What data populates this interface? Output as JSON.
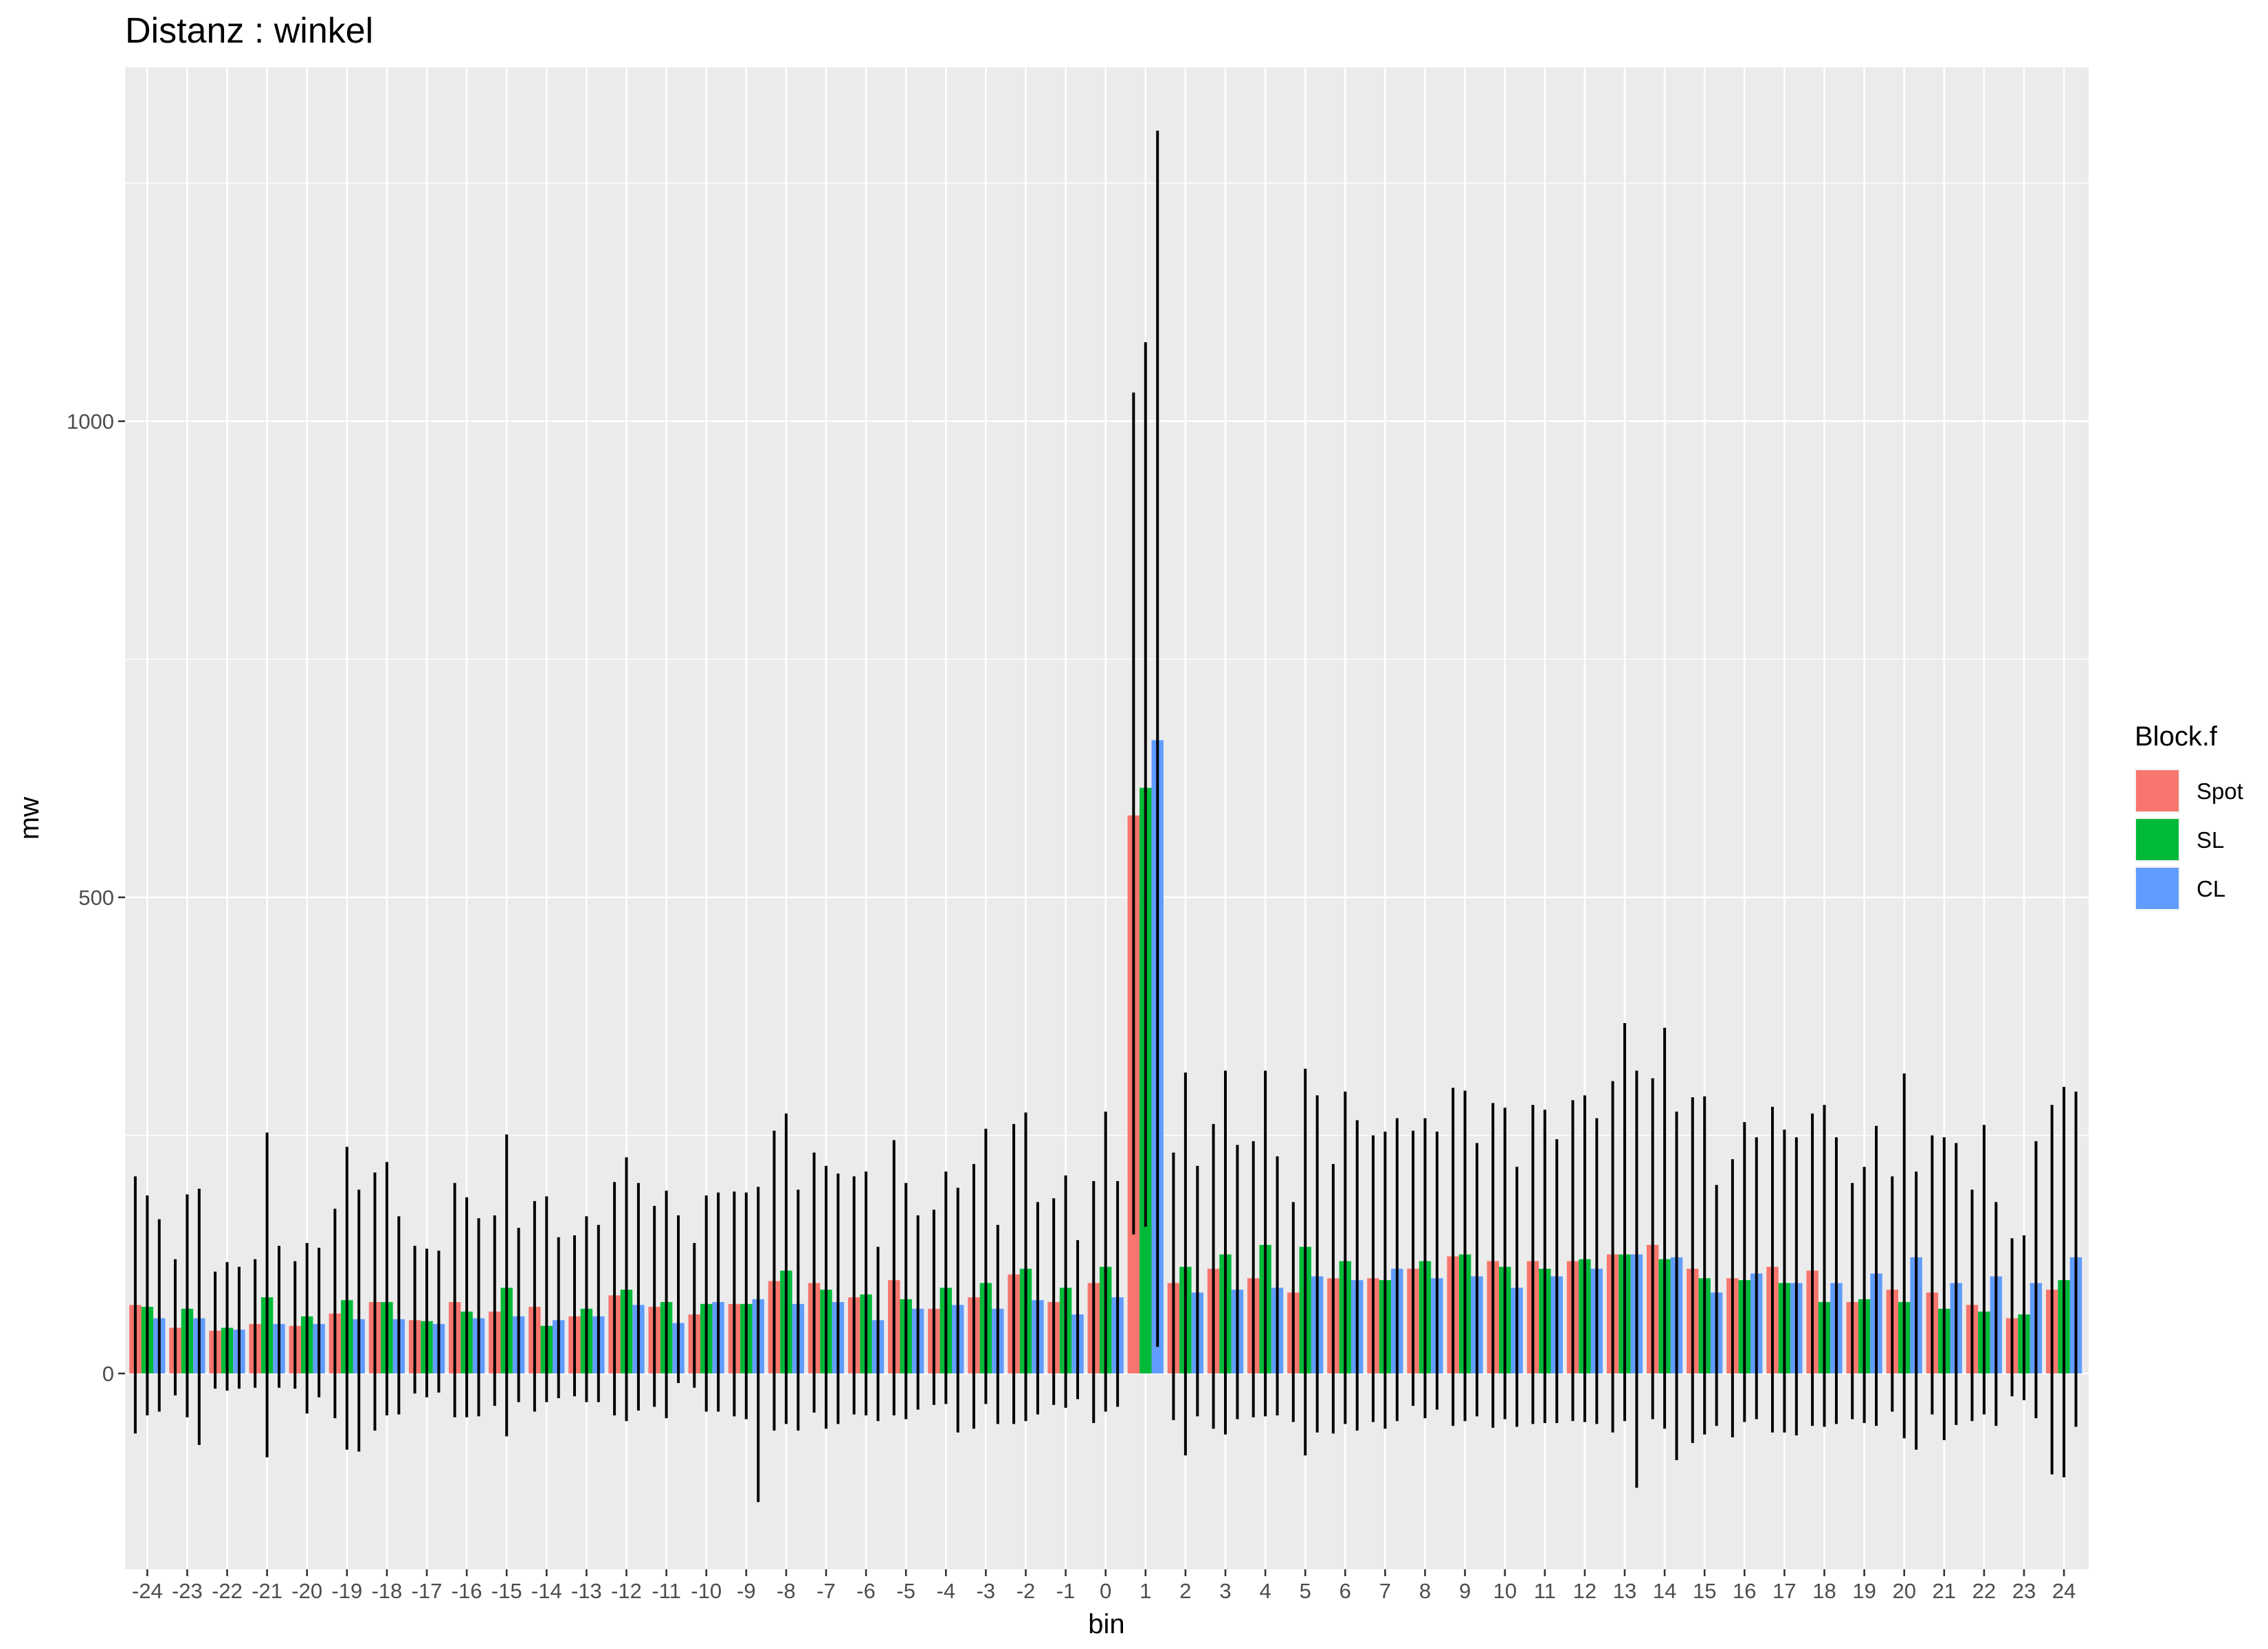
{
  "chart_data": {
    "type": "bar",
    "title": "Distanz : winkel",
    "xlabel": "bin",
    "ylabel": "mw",
    "ylim": [
      -200,
      1380
    ],
    "yticks": [
      0,
      500,
      1000
    ],
    "ytick_labels": [
      "0",
      "500",
      "1000"
    ],
    "grid": true,
    "legend_title": "Block.f",
    "legend_position": "right",
    "categories": [
      "-24",
      "-23",
      "-22",
      "-21",
      "-20",
      "-19",
      "-18",
      "-17",
      "-16",
      "-15",
      "-14",
      "-13",
      "-12",
      "-11",
      "-10",
      "-9",
      "-8",
      "-7",
      "-6",
      "-5",
      "-4",
      "-3",
      "-2",
      "-1",
      "0",
      "1",
      "2",
      "3",
      "4",
      "5",
      "6",
      "7",
      "8",
      "9",
      "10",
      "11",
      "12",
      "13",
      "14",
      "15",
      "16",
      "17",
      "18",
      "19",
      "20",
      "21",
      "22",
      "23",
      "24"
    ],
    "series": [
      {
        "name": "Spot",
        "color": "#F8766D",
        "values": [
          72,
          48,
          45,
          52,
          50,
          63,
          75,
          56,
          75,
          65,
          70,
          60,
          82,
          70,
          62,
          73,
          97,
          95,
          80,
          98,
          68,
          80,
          104,
          75,
          95,
          586,
          95,
          110,
          100,
          85,
          100,
          100,
          110,
          123,
          118,
          118,
          118,
          125,
          135,
          110,
          100,
          112,
          108,
          75,
          88,
          85,
          72,
          58,
          88
        ],
        "err_low": [
          -63,
          -23,
          -16,
          -15,
          -16,
          -47,
          -60,
          -21,
          -46,
          -34,
          -40,
          -24,
          -44,
          -35,
          -15,
          -45,
          -60,
          -41,
          -43,
          -44,
          -33,
          -58,
          -53,
          -33,
          -52,
          146,
          -49,
          -58,
          -46,
          -51,
          -63,
          -51,
          -34,
          -55,
          -57,
          -53,
          -50,
          -62,
          -48,
          -73,
          -67,
          -62,
          -55,
          -48,
          -40,
          -43,
          -50,
          -24,
          -106
        ],
        "err_high": [
          207,
          120,
          107,
          120,
          118,
          173,
          211,
          134,
          200,
          166,
          181,
          145,
          201,
          176,
          137,
          191,
          255,
          232,
          207,
          245,
          172,
          220,
          262,
          184,
          202,
          1030,
          232,
          262,
          244,
          180,
          220,
          250,
          255,
          300,
          284,
          282,
          287,
          307,
          310,
          290,
          225,
          280,
          273,
          200,
          207,
          250,
          193,
          142,
          282
        ]
      },
      {
        "name": "SL",
        "color": "#00BA38",
        "values": [
          70,
          68,
          48,
          80,
          60,
          77,
          75,
          55,
          65,
          90,
          50,
          68,
          88,
          75,
          73,
          73,
          108,
          88,
          83,
          78,
          90,
          95,
          110,
          90,
          112,
          615,
          112,
          125,
          135,
          133,
          118,
          98,
          118,
          125,
          112,
          110,
          120,
          125,
          120,
          100,
          98,
          95,
          75,
          78,
          75,
          68,
          65,
          62,
          98
        ],
        "err_low": [
          -44,
          -46,
          -18,
          -88,
          -42,
          -80,
          -44,
          -25,
          -46,
          -66,
          -30,
          -30,
          -50,
          -47,
          -40,
          -48,
          -53,
          -58,
          -44,
          -48,
          -32,
          -32,
          -50,
          -36,
          -40,
          154,
          -86,
          -64,
          -45,
          -86,
          -53,
          -58,
          -47,
          -50,
          -48,
          -52,
          -51,
          -50,
          -58,
          -64,
          -51,
          -62,
          -56,
          -52,
          -68,
          -70,
          -43,
          -28,
          -109
        ],
        "err_high": [
          187,
          188,
          117,
          253,
          137,
          238,
          222,
          131,
          185,
          251,
          186,
          165,
          227,
          192,
          187,
          190,
          273,
          218,
          212,
          200,
          212,
          257,
          274,
          208,
          275,
          1083,
          316,
          318,
          318,
          320,
          296,
          254,
          268,
          297,
          279,
          277,
          292,
          368,
          363,
          291,
          264,
          256,
          282,
          217,
          315,
          248,
          261,
          145,
          301
        ]
      },
      {
        "name": "CL",
        "color": "#619CFF",
        "values": [
          58,
          58,
          46,
          52,
          52,
          57,
          57,
          52,
          58,
          60,
          56,
          60,
          72,
          53,
          75,
          78,
          73,
          75,
          56,
          68,
          72,
          68,
          77,
          62,
          80,
          665,
          85,
          88,
          90,
          102,
          98,
          110,
          100,
          102,
          90,
          102,
          110,
          125,
          122,
          85,
          105,
          95,
          95,
          105,
          122,
          95,
          102,
          95,
          122
        ],
        "err_low": [
          -40,
          -75,
          -16,
          -15,
          -25,
          -82,
          -43,
          -20,
          -45,
          -30,
          -26,
          -30,
          -39,
          -10,
          -40,
          -135,
          -60,
          -53,
          -50,
          -38,
          -62,
          -53,
          -43,
          -27,
          -35,
          28,
          -45,
          -48,
          -44,
          -62,
          -60,
          -50,
          -38,
          -45,
          -56,
          -52,
          -53,
          -120,
          -91,
          -55,
          -48,
          -65,
          -53,
          -55,
          -80,
          -54,
          -55,
          -47,
          -56
        ],
        "err_high": [
          162,
          194,
          112,
          134,
          132,
          193,
          165,
          129,
          163,
          153,
          143,
          156,
          200,
          166,
          190,
          196,
          193,
          210,
          133,
          166,
          195,
          156,
          180,
          140,
          202,
          1305,
          218,
          240,
          228,
          292,
          266,
          268,
          254,
          242,
          217,
          246,
          268,
          318,
          275,
          198,
          248,
          248,
          248,
          260,
          212,
          242,
          180,
          244,
          296
        ]
      }
    ]
  }
}
